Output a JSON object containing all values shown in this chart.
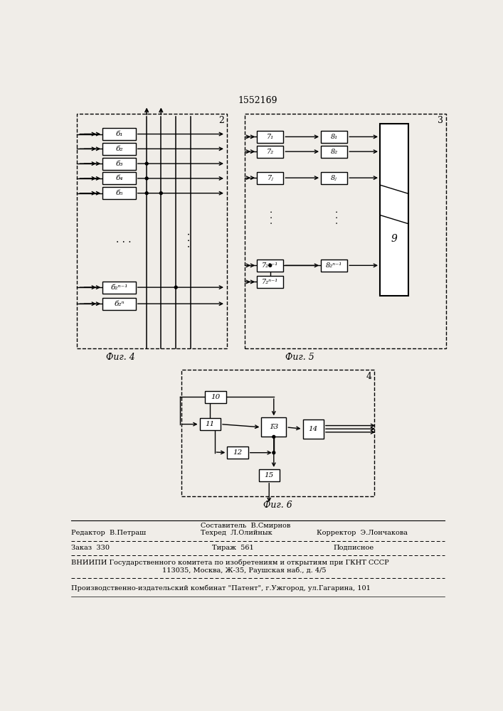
{
  "title": "1552169",
  "bg_color": "#f0ede8",
  "box_color": "#000000",
  "line_color": "#000000",
  "fig4_label": "Фиг. 4",
  "fig5_label": "Фиг. 5",
  "fig6_label": "Фиг. 6",
  "footer_comp": "Составитель  В.Смирнов",
  "footer_editor": "Редактор  В.Петраш",
  "footer_tech": "Техред  Л.Олийнык",
  "footer_corr": "Корректор  Э.Лончакова",
  "footer_order": "Заказ  330",
  "footer_tirazh": "Тираж  561",
  "footer_podp": "Подписное",
  "footer_vniip1": "ВНИИПИ Государственного комитета по изобретениям и открытиям при ГКНТ СССР",
  "footer_vniip2": "113о35, Москва, Ж-35, Раушская наб., д. 4/5",
  "footer_patent": "Производственно-издательский комбинат «Патент», г.Ужгород, ул.Гагарина, 101"
}
